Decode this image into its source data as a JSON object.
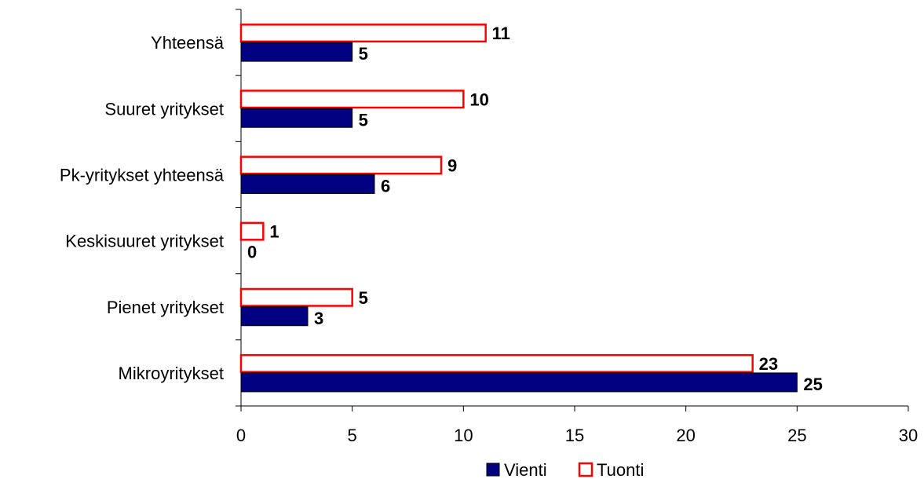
{
  "chart_data": {
    "type": "bar",
    "orientation": "horizontal",
    "categories": [
      "Yhteensä",
      "Suuret yritykset",
      "Pk-yritykset yhteensä",
      "Keskisuuret yritykset",
      "Pienet yritykset",
      "Mikroyritykset"
    ],
    "series": [
      {
        "name": "Vienti",
        "values": [
          5,
          5,
          6,
          0,
          3,
          25
        ],
        "color": "#000080",
        "style": "filled"
      },
      {
        "name": "Tuonti",
        "values": [
          11,
          10,
          9,
          1,
          5,
          23
        ],
        "color": "#ff0000",
        "style": "outline"
      }
    ],
    "xlim": [
      0,
      30
    ],
    "xticks": [
      "0",
      "5",
      "10",
      "15",
      "20",
      "25",
      "30"
    ],
    "grid": false,
    "legend_position": "bottom"
  }
}
